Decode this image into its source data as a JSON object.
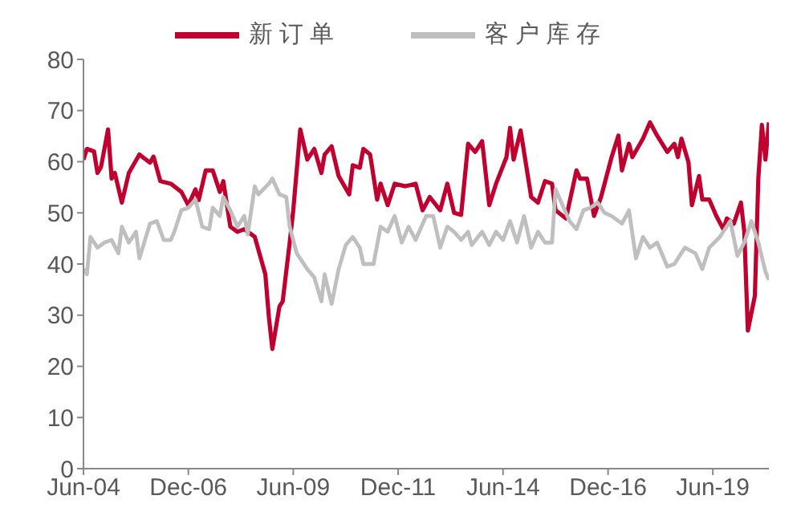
{
  "chart_data": {
    "type": "line",
    "legend": "top",
    "grid": false,
    "marker": "none",
    "line_style": "solid",
    "xlim": [
      "2004-06",
      "2020-10"
    ],
    "xticks": [
      {
        "value": "2004-06",
        "label": "Jun-04"
      },
      {
        "value": "2006-12",
        "label": "Dec-06"
      },
      {
        "value": "2009-06",
        "label": "Jun-09"
      },
      {
        "value": "2011-12",
        "label": "Dec-11"
      },
      {
        "value": "2014-06",
        "label": "Jun-14"
      },
      {
        "value": "2016-12",
        "label": "Dec-16"
      },
      {
        "value": "2019-06",
        "label": "Jun-19"
      }
    ],
    "ylim": [
      0,
      80
    ],
    "yticks": [
      0,
      10,
      20,
      30,
      40,
      50,
      60,
      70,
      80
    ],
    "series": [
      {
        "name": "新订单",
        "color": "#c0002f",
        "x": [
          "2004-06",
          "2004-07",
          "2004-09",
          "2004-10",
          "2004-11",
          "2005-01",
          "2005-02",
          "2005-03",
          "2005-05",
          "2005-07",
          "2005-10",
          "2006-01",
          "2006-02",
          "2006-04",
          "2006-07",
          "2006-10",
          "2006-12",
          "2007-02",
          "2007-03",
          "2007-05",
          "2007-07",
          "2007-09",
          "2007-10",
          "2007-12",
          "2008-02",
          "2008-04",
          "2008-07",
          "2008-10",
          "2008-11",
          "2008-12",
          "2009-02",
          "2009-03",
          "2009-05",
          "2009-06",
          "2009-08",
          "2009-10",
          "2009-12",
          "2010-02",
          "2010-03",
          "2010-05",
          "2010-07",
          "2010-10",
          "2010-11",
          "2011-01",
          "2011-02",
          "2011-04",
          "2011-06",
          "2011-07",
          "2011-09",
          "2011-11",
          "2012-02",
          "2012-05",
          "2012-07",
          "2012-09",
          "2012-12",
          "2013-02",
          "2013-04",
          "2013-06",
          "2013-08",
          "2013-10",
          "2013-12",
          "2014-02",
          "2014-04",
          "2014-07",
          "2014-08",
          "2014-09",
          "2014-11",
          "2015-02",
          "2015-04",
          "2015-06",
          "2015-08",
          "2015-09",
          "2015-12",
          "2016-03",
          "2016-04",
          "2016-06",
          "2016-08",
          "2016-10",
          "2017-01",
          "2017-03",
          "2017-04",
          "2017-06",
          "2017-07",
          "2017-10",
          "2017-12",
          "2018-02",
          "2018-05",
          "2018-07",
          "2018-08",
          "2018-09",
          "2018-11",
          "2018-12",
          "2019-02",
          "2019-03",
          "2019-05",
          "2019-07",
          "2019-09",
          "2019-10",
          "2019-12",
          "2020-02",
          "2020-03",
          "2020-04",
          "2020-06",
          "2020-07",
          "2020-08",
          "2020-09",
          "2020-10"
        ],
        "values": [
          60.4,
          62.5,
          62,
          57.8,
          59,
          66.3,
          56.7,
          57.8,
          52,
          57.8,
          61.4,
          59.8,
          61,
          56.2,
          55.7,
          54.1,
          51.5,
          54.6,
          52.5,
          58.3,
          58.3,
          54.1,
          56.2,
          47.3,
          46.3,
          46.8,
          45.3,
          38,
          29.6,
          23.4,
          31.7,
          32.7,
          44.2,
          50.5,
          66.3,
          60.4,
          62.5,
          57.8,
          61.4,
          63,
          57.2,
          53.6,
          59.3,
          58.8,
          62.5,
          61.4,
          52.6,
          55.7,
          51.5,
          55.7,
          55.2,
          55.7,
          50.5,
          53.1,
          50.5,
          55.7,
          50,
          49.6,
          63.5,
          61.9,
          64,
          51.5,
          55.7,
          60.9,
          66.6,
          60.4,
          66.1,
          53.1,
          52,
          56.2,
          55.7,
          50.5,
          48.9,
          58.3,
          56.7,
          56.7,
          49.4,
          53.1,
          60.9,
          65.1,
          58.3,
          63.5,
          60.9,
          64.5,
          67.7,
          65.1,
          61.9,
          63.5,
          60.9,
          64.5,
          59.9,
          51.5,
          57.2,
          52.6,
          52.6,
          49.4,
          46.8,
          48.9,
          47.9,
          52,
          46.3,
          27,
          33.8,
          56.7,
          67.2,
          60.4,
          67.7
        ]
      },
      {
        "name": "客户库存",
        "color": "#bfbfbf",
        "x": [
          "2004-06",
          "2004-07",
          "2004-08",
          "2004-10",
          "2004-12",
          "2005-02",
          "2005-04",
          "2005-05",
          "2005-07",
          "2005-09",
          "2005-10",
          "2006-01",
          "2006-03",
          "2006-05",
          "2006-07",
          "2006-08",
          "2006-10",
          "2006-12",
          "2007-02",
          "2007-04",
          "2007-06",
          "2007-07",
          "2007-09",
          "2007-10",
          "2007-12",
          "2008-02",
          "2008-04",
          "2008-05",
          "2008-07",
          "2008-08",
          "2008-11",
          "2008-12",
          "2009-02",
          "2009-04",
          "2009-05",
          "2009-07",
          "2009-10",
          "2009-12",
          "2010-02",
          "2010-03",
          "2010-05",
          "2010-07",
          "2010-09",
          "2010-11",
          "2011-01",
          "2011-02",
          "2011-05",
          "2011-07",
          "2011-09",
          "2011-11",
          "2012-01",
          "2012-03",
          "2012-05",
          "2012-08",
          "2012-10",
          "2012-12",
          "2013-02",
          "2013-04",
          "2013-06",
          "2013-08",
          "2013-09",
          "2013-12",
          "2014-02",
          "2014-04",
          "2014-06",
          "2014-08",
          "2014-10",
          "2014-12",
          "2015-02",
          "2015-04",
          "2015-06",
          "2015-08",
          "2015-09",
          "2015-11",
          "2016-01",
          "2016-03",
          "2016-05",
          "2016-07",
          "2016-09",
          "2016-11",
          "2017-01",
          "2017-04",
          "2017-06",
          "2017-08",
          "2017-10",
          "2017-12",
          "2018-02",
          "2018-05",
          "2018-07",
          "2018-10",
          "2019-01",
          "2019-03",
          "2019-05",
          "2019-08",
          "2019-11",
          "2020-01",
          "2020-03",
          "2020-05",
          "2020-07",
          "2020-09",
          "2020-10"
        ],
        "values": [
          39,
          38,
          45.3,
          43.2,
          44.2,
          44.7,
          42.1,
          47.3,
          44.2,
          46.3,
          41.1,
          47.9,
          48.4,
          44.7,
          44.7,
          46.3,
          50.5,
          51,
          52.6,
          47.3,
          46.8,
          51,
          49.4,
          53.1,
          50.5,
          47.3,
          49.4,
          45.8,
          55.2,
          53.6,
          55.7,
          56.7,
          53.6,
          53.1,
          47.3,
          42.1,
          39,
          37.4,
          32.7,
          38,
          32.2,
          39,
          43.7,
          45.3,
          43.2,
          40,
          40,
          47.3,
          46.3,
          49.4,
          44.2,
          47.3,
          44.7,
          49.4,
          49.4,
          43.2,
          47.3,
          46.3,
          44.7,
          46.3,
          43.7,
          46.3,
          43.7,
          46.3,
          44.7,
          48.4,
          44.2,
          49.4,
          43.2,
          46.3,
          44.2,
          44.2,
          54.6,
          51.5,
          48.4,
          46.8,
          50.5,
          51,
          52,
          50,
          49.4,
          47.9,
          50.5,
          41.1,
          45.3,
          43.2,
          44.2,
          39.5,
          40,
          43.2,
          42.1,
          39,
          43.2,
          45.3,
          48.4,
          41.6,
          44.2,
          48.4,
          44.2,
          38.5,
          36.9
        ]
      }
    ]
  }
}
